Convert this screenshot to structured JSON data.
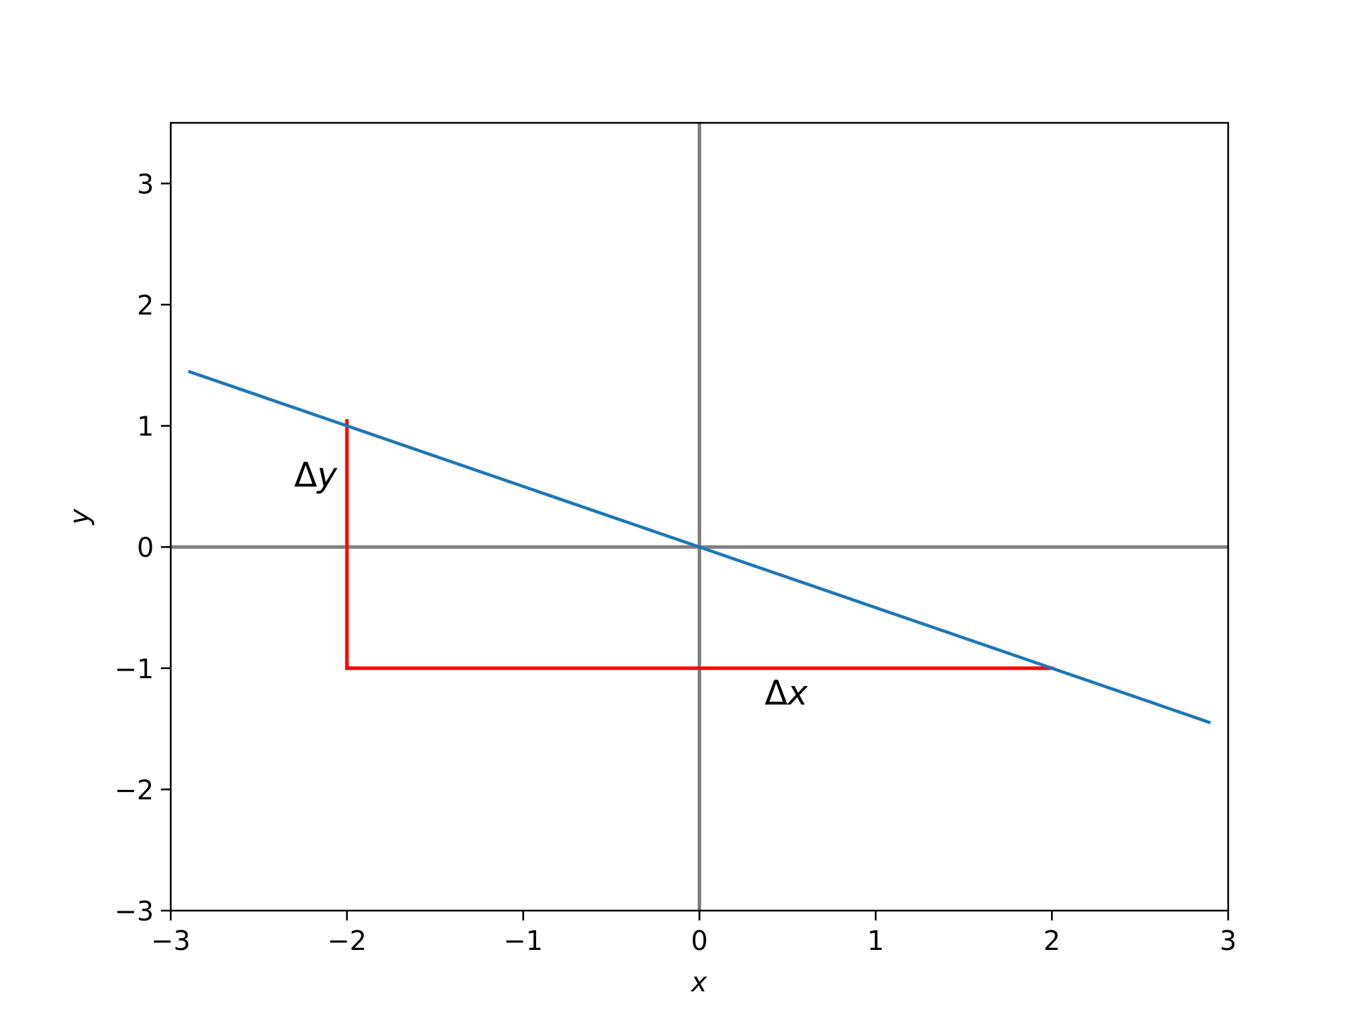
{
  "chart_data": {
    "type": "line",
    "xlabel": "x",
    "ylabel": "y",
    "xlim": [
      -3,
      3
    ],
    "ylim": [
      -3,
      3.5
    ],
    "xticks": [
      -3,
      -2,
      -1,
      0,
      1,
      2,
      3
    ],
    "yticks": [
      -3,
      -2,
      -1,
      0,
      1,
      2,
      3
    ],
    "xtick_labels": [
      "−3",
      "−2",
      "−1",
      "0",
      "1",
      "2",
      "3"
    ],
    "ytick_labels": [
      "−3",
      "−2",
      "−1",
      "0",
      "1",
      "2",
      "3"
    ],
    "grid": false,
    "reference_lines": [
      {
        "orientation": "horizontal",
        "value": 0,
        "color": "#808080"
      },
      {
        "orientation": "vertical",
        "value": 0,
        "color": "#808080"
      }
    ],
    "series": [
      {
        "color": "#1f77b4",
        "x": [
          -2.9,
          2.9
        ],
        "y": [
          1.45,
          -1.45
        ]
      }
    ],
    "segments": [
      {
        "id": "delta-y",
        "color": "#ff0000",
        "x": [
          -2,
          -2
        ],
        "y": [
          1.04,
          -1
        ]
      },
      {
        "id": "delta-x",
        "color": "#ff0000",
        "x": [
          -2,
          2
        ],
        "y": [
          -1,
          -1
        ]
      }
    ],
    "annotations": [
      {
        "id": "delta-y",
        "symbol": "Δ",
        "var": "y",
        "x": -2.3,
        "y": 0.5
      },
      {
        "id": "delta-x",
        "symbol": "Δ",
        "var": "x",
        "x": 0.37,
        "y": -1.3
      }
    ]
  }
}
